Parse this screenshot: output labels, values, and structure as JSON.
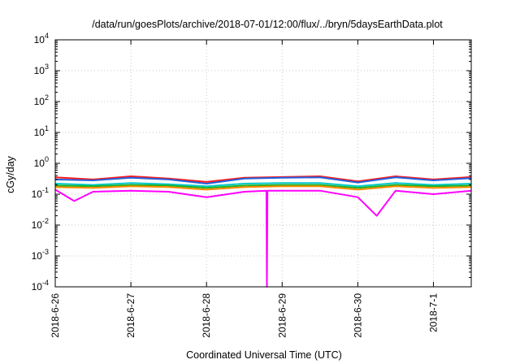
{
  "chart_data": {
    "type": "line",
    "title": "/data/run/goesPlots/archive/2018-07-01/12:00/flux/../bryn/5daysEarthData.plot",
    "xlabel": "Coordinated Universal Time (UTC)",
    "ylabel": "cGy/day",
    "y_scale": "log",
    "ylim": [
      0.0001,
      10000
    ],
    "xlim": [
      "2018-06-26",
      "2018-07-01 12:00"
    ],
    "x_ticks": [
      "2018-6-26",
      "2018-6-27",
      "2018-6-28",
      "2018-6-29",
      "2018-6-30",
      "2018-7-1"
    ],
    "y_ticks": [
      {
        "value": 0.0001,
        "base": "10",
        "exp": "-4"
      },
      {
        "value": 0.001,
        "base": "10",
        "exp": "-3"
      },
      {
        "value": 0.01,
        "base": "10",
        "exp": "-2"
      },
      {
        "value": 0.1,
        "base": "10",
        "exp": "-1"
      },
      {
        "value": 1,
        "base": "10",
        "exp": "0"
      },
      {
        "value": 10,
        "base": "10",
        "exp": "1"
      },
      {
        "value": 100,
        "base": "10",
        "exp": "2"
      },
      {
        "value": 1000,
        "base": "10",
        "exp": "3"
      },
      {
        "value": 10000,
        "base": "10",
        "exp": "4"
      }
    ],
    "grid": true,
    "legend": "none",
    "series": [
      {
        "color": "#ff1a1a",
        "x": [
          "2018-06-26",
          "2018-06-26 12:00",
          "2018-06-27",
          "2018-06-27 12:00",
          "2018-06-28",
          "2018-06-28 12:00",
          "2018-06-29",
          "2018-06-29 12:00",
          "2018-06-30",
          "2018-06-30 12:00",
          "2018-07-01",
          "2018-07-01 12:00"
        ],
        "y": [
          0.35,
          0.3,
          0.38,
          0.32,
          0.25,
          0.34,
          0.36,
          0.38,
          0.26,
          0.38,
          0.3,
          0.36
        ]
      },
      {
        "color": "#2060e0",
        "x": [
          "2018-06-26",
          "2018-06-26 12:00",
          "2018-06-27",
          "2018-06-27 12:00",
          "2018-06-28",
          "2018-06-28 12:00",
          "2018-06-29",
          "2018-06-29 12:00",
          "2018-06-30",
          "2018-06-30 12:00",
          "2018-07-01",
          "2018-07-01 12:00"
        ],
        "y": [
          0.3,
          0.28,
          0.34,
          0.3,
          0.22,
          0.32,
          0.34,
          0.35,
          0.24,
          0.35,
          0.28,
          0.33
        ]
      },
      {
        "color": "#00c8c8",
        "x": [
          "2018-06-26",
          "2018-06-26 12:00",
          "2018-06-27",
          "2018-06-27 12:00",
          "2018-06-28",
          "2018-06-28 12:00",
          "2018-06-29",
          "2018-06-29 12:00",
          "2018-06-30",
          "2018-06-30 12:00",
          "2018-07-01",
          "2018-07-01 12:00"
        ],
        "y": [
          0.22,
          0.2,
          0.23,
          0.21,
          0.18,
          0.22,
          0.23,
          0.23,
          0.18,
          0.23,
          0.2,
          0.22
        ]
      },
      {
        "color": "#20b020",
        "x": [
          "2018-06-26",
          "2018-06-26 12:00",
          "2018-06-27",
          "2018-06-27 12:00",
          "2018-06-28",
          "2018-06-28 12:00",
          "2018-06-29",
          "2018-06-29 12:00",
          "2018-06-30",
          "2018-06-30 12:00",
          "2018-07-01",
          "2018-07-01 12:00"
        ],
        "y": [
          0.19,
          0.18,
          0.2,
          0.19,
          0.16,
          0.19,
          0.2,
          0.2,
          0.16,
          0.2,
          0.18,
          0.19
        ]
      },
      {
        "color": "#ff8a00",
        "x": [
          "2018-06-26",
          "2018-06-26 12:00",
          "2018-06-27",
          "2018-06-27 12:00",
          "2018-06-28",
          "2018-06-28 12:00",
          "2018-06-29",
          "2018-06-29 12:00",
          "2018-06-30",
          "2018-06-30 12:00",
          "2018-07-01",
          "2018-07-01 12:00"
        ],
        "y": [
          0.17,
          0.16,
          0.18,
          0.17,
          0.14,
          0.17,
          0.18,
          0.18,
          0.14,
          0.18,
          0.16,
          0.17
        ]
      },
      {
        "color": "#ff00ff",
        "x": [
          "2018-06-26",
          "2018-06-26 06:00",
          "2018-06-26 12:00",
          "2018-06-27",
          "2018-06-27 12:00",
          "2018-06-28",
          "2018-06-28 12:00",
          "2018-06-28 19:00",
          "2018-06-28 19:10",
          "2018-06-28 19:20",
          "2018-06-29",
          "2018-06-29 12:00",
          "2018-06-30",
          "2018-06-30 06:00",
          "2018-06-30 12:00",
          "2018-07-01",
          "2018-07-01 12:00"
        ],
        "y": [
          0.14,
          0.06,
          0.12,
          0.13,
          0.12,
          0.08,
          0.12,
          0.13,
          0.0001,
          0.13,
          0.13,
          0.13,
          0.08,
          0.02,
          0.13,
          0.1,
          0.13
        ]
      }
    ]
  }
}
